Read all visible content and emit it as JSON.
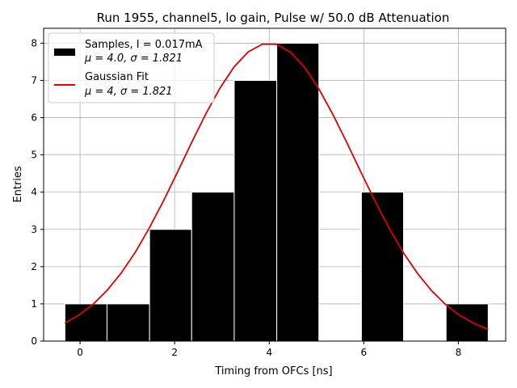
{
  "chart_data": {
    "type": "bar",
    "title": "Run 1955, channel5, lo gain, Pulse w/ 50.0 dB Attenuation",
    "xlabel": "Timing from OFCs [ns]",
    "ylabel": "Entries",
    "xlim": [
      -0.77,
      9.0
    ],
    "ylim": [
      0,
      8.4
    ],
    "xticks": [
      "0",
      "2",
      "4",
      "6",
      "8"
    ],
    "yticks": [
      "0",
      "1",
      "2",
      "3",
      "4",
      "5",
      "6",
      "7",
      "8"
    ],
    "grid": true,
    "legend_position": "top-left",
    "histogram": {
      "bin_edges": [
        -0.32,
        0.57,
        1.47,
        2.36,
        3.26,
        4.16,
        5.05,
        5.95,
        6.84,
        7.74,
        8.63
      ],
      "counts": [
        1,
        1,
        3,
        4,
        7,
        8,
        0,
        4,
        0,
        1
      ],
      "color": "#000000",
      "edgecolor": "#ffffff"
    },
    "fit": {
      "mu": 4.0,
      "sigma": 1.821,
      "amplitude": 8.0,
      "x_range": [
        -0.32,
        8.63
      ],
      "color": "#e00000"
    },
    "legend": [
      {
        "line1": "Samples, I = 0.017mA",
        "mu_label": "μ = 4.0, ",
        "sigma_label": "σ = 1.821",
        "marker": "patch",
        "color": "#000000"
      },
      {
        "line1": "Gaussian Fit",
        "mu_label": "μ = 4, ",
        "sigma_label": "σ = 1.821",
        "marker": "line",
        "color": "#e00000"
      }
    ]
  }
}
